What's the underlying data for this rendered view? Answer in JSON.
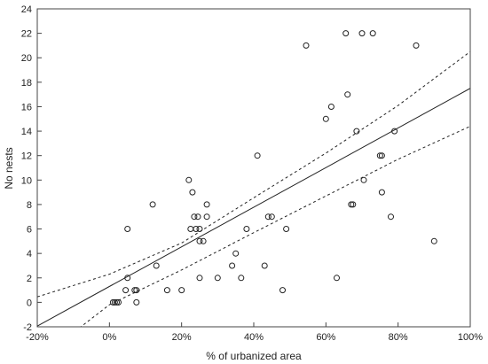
{
  "chart_data": {
    "type": "scatter",
    "xlabel": "% of urbanized area",
    "ylabel": "No nests",
    "xlim": [
      -20,
      100
    ],
    "ylim": [
      -2,
      24
    ],
    "xticks": [
      -20,
      0,
      20,
      40,
      60,
      80,
      100
    ],
    "xtick_labels": [
      "-20%",
      "0%",
      "20%",
      "40%",
      "60%",
      "80%",
      "100%"
    ],
    "yticks": [
      -2,
      0,
      2,
      4,
      6,
      8,
      10,
      12,
      14,
      16,
      18,
      20,
      22,
      24
    ],
    "ytick_labels": [
      "-2",
      "0",
      "2",
      "4",
      "6",
      "8",
      "10",
      "12",
      "14",
      "16",
      "18",
      "20",
      "22",
      "24"
    ],
    "grid": false,
    "points": [
      {
        "x": 1,
        "y": 0
      },
      {
        "x": 1.5,
        "y": 0
      },
      {
        "x": 2,
        "y": 0
      },
      {
        "x": 2.5,
        "y": 0
      },
      {
        "x": 4.5,
        "y": 1
      },
      {
        "x": 5,
        "y": 6
      },
      {
        "x": 5,
        "y": 2
      },
      {
        "x": 7,
        "y": 1
      },
      {
        "x": 7.5,
        "y": 1
      },
      {
        "x": 7.5,
        "y": 0
      },
      {
        "x": 12,
        "y": 8
      },
      {
        "x": 13,
        "y": 3
      },
      {
        "x": 16,
        "y": 1
      },
      {
        "x": 20,
        "y": 1
      },
      {
        "x": 22,
        "y": 10
      },
      {
        "x": 22.5,
        "y": 6
      },
      {
        "x": 23,
        "y": 9
      },
      {
        "x": 23.5,
        "y": 7
      },
      {
        "x": 24,
        "y": 6
      },
      {
        "x": 24.5,
        "y": 7
      },
      {
        "x": 25,
        "y": 5
      },
      {
        "x": 25,
        "y": 6
      },
      {
        "x": 25,
        "y": 2
      },
      {
        "x": 26,
        "y": 5
      },
      {
        "x": 27,
        "y": 7
      },
      {
        "x": 27,
        "y": 8
      },
      {
        "x": 30,
        "y": 2
      },
      {
        "x": 34,
        "y": 3
      },
      {
        "x": 35,
        "y": 4
      },
      {
        "x": 36.5,
        "y": 2
      },
      {
        "x": 38,
        "y": 6
      },
      {
        "x": 41,
        "y": 12
      },
      {
        "x": 43,
        "y": 3
      },
      {
        "x": 44,
        "y": 7
      },
      {
        "x": 45,
        "y": 7
      },
      {
        "x": 48,
        "y": 1
      },
      {
        "x": 49,
        "y": 6
      },
      {
        "x": 54.5,
        "y": 21
      },
      {
        "x": 60,
        "y": 15
      },
      {
        "x": 61.5,
        "y": 16
      },
      {
        "x": 63,
        "y": 2
      },
      {
        "x": 65.5,
        "y": 22
      },
      {
        "x": 66,
        "y": 17
      },
      {
        "x": 67,
        "y": 8
      },
      {
        "x": 67.5,
        "y": 8
      },
      {
        "x": 68.5,
        "y": 14
      },
      {
        "x": 70,
        "y": 22
      },
      {
        "x": 70.5,
        "y": 10
      },
      {
        "x": 73,
        "y": 22
      },
      {
        "x": 75,
        "y": 12
      },
      {
        "x": 75.5,
        "y": 12
      },
      {
        "x": 75.5,
        "y": 9
      },
      {
        "x": 78,
        "y": 7
      },
      {
        "x": 79,
        "y": 14
      },
      {
        "x": 85,
        "y": 21
      },
      {
        "x": 90,
        "y": 5
      }
    ],
    "fit_line": {
      "intercept": 1.3,
      "slope": 0.162
    },
    "confidence_band": {
      "x": [
        -20,
        0,
        20,
        40,
        60,
        80,
        100
      ],
      "upper": [
        0.45,
        2.3,
        4.85,
        8.55,
        12.2,
        16.1,
        20.5
      ],
      "lower": [
        -4.75,
        -0.2,
        2.65,
        5.7,
        8.7,
        11.7,
        14.4
      ]
    }
  }
}
